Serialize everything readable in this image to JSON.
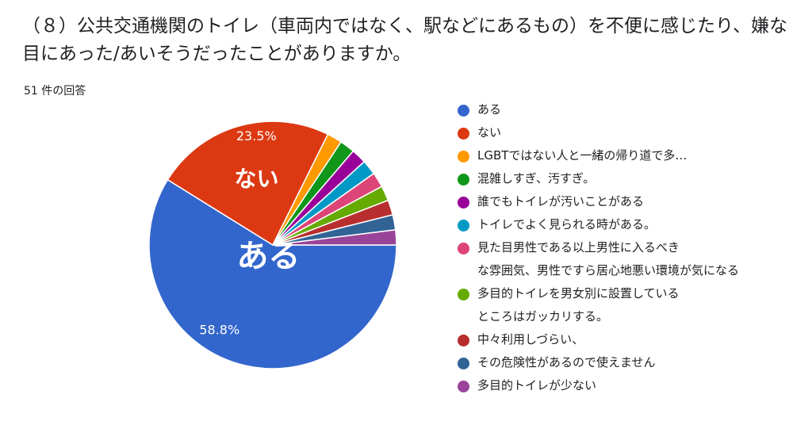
{
  "question_title": "（８）公共交通機関のトイレ（車両内ではなく、駅などにあるもの）を不便に感じたり、嫌な目にあった/あいそうだったことがありますか。",
  "response_count": "51 件の回答",
  "chart_data": {
    "type": "pie",
    "slices": [
      {
        "label": "ある",
        "value": 58.8,
        "percent_label": "58.8%",
        "big_label": "ある",
        "color": "#3366cc"
      },
      {
        "label": "ない",
        "value": 23.5,
        "percent_label": "23.5%",
        "big_label": "ない",
        "color": "#dc3912"
      },
      {
        "label": "LGBTではない人と一緒の帰り道で多…",
        "value": 1.96,
        "color": "#ff9900"
      },
      {
        "label": "混雑しすぎ、汚すぎ。",
        "value": 1.96,
        "color": "#109618"
      },
      {
        "label": "誰でもトイレが汚いことがある",
        "value": 1.96,
        "color": "#990099"
      },
      {
        "label": "トイレでよく見られる時がある。",
        "value": 1.96,
        "color": "#0099c6"
      },
      {
        "label": "見た目男性である以上男性に入るべき\nな雰囲気、男性ですら居心地悪い環境が気になる",
        "value": 1.96,
        "color": "#dd4477"
      },
      {
        "label": "多目的トイレを男女別に設置している\nところはガッカリする。",
        "value": 1.96,
        "color": "#66aa00"
      },
      {
        "label": "中々利用しづらい、",
        "value": 1.96,
        "color": "#b82e2e"
      },
      {
        "label": "その危険性があるので使えません",
        "value": 1.96,
        "color": "#316395"
      },
      {
        "label": "多目的トイレが少ない",
        "value": 1.96,
        "color": "#994499"
      }
    ],
    "legend_position": "right"
  }
}
